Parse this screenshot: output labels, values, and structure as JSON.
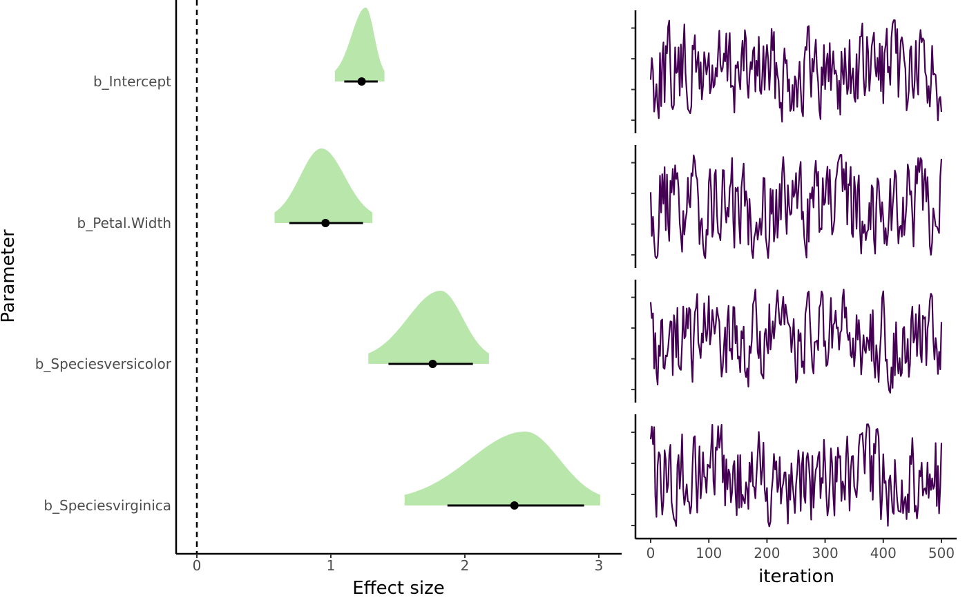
{
  "chart_data": [
    {
      "type": "density-interval",
      "xlabel": "Effect size",
      "ylabel": "Parameter",
      "xlim": [
        -0.15,
        3.15
      ],
      "xticks": [
        "0",
        "1",
        "2",
        "3"
      ],
      "reference_line": 0,
      "colors": {
        "density": "#b8e6ab",
        "interval": "#000000",
        "point": "#000000"
      },
      "parameters": [
        {
          "label": "b_Intercept",
          "point": 1.23,
          "lower": 1.1,
          "upper": 1.35,
          "range": [
            1.03,
            1.4
          ],
          "density_peak": 1.26
        },
        {
          "label": "b_Petal.Width",
          "point": 0.96,
          "lower": 0.69,
          "upper": 1.24,
          "range": [
            0.58,
            1.31
          ],
          "density_peak": 0.93
        },
        {
          "label": "b_Speciesversicolor",
          "point": 1.76,
          "lower": 1.43,
          "upper": 2.06,
          "range": [
            1.28,
            2.18
          ],
          "density_peak": 1.82
        },
        {
          "label": "b_Speciesvirginica",
          "point": 2.37,
          "lower": 1.87,
          "upper": 2.89,
          "range": [
            1.55,
            3.01
          ],
          "density_peak": 2.45
        }
      ]
    },
    {
      "type": "line",
      "facets": 4,
      "xlabel": "iteration",
      "xlim": [
        -10,
        510
      ],
      "xticks": [
        "0",
        "100",
        "200",
        "300",
        "400",
        "500"
      ],
      "color": "#440154"
    }
  ]
}
